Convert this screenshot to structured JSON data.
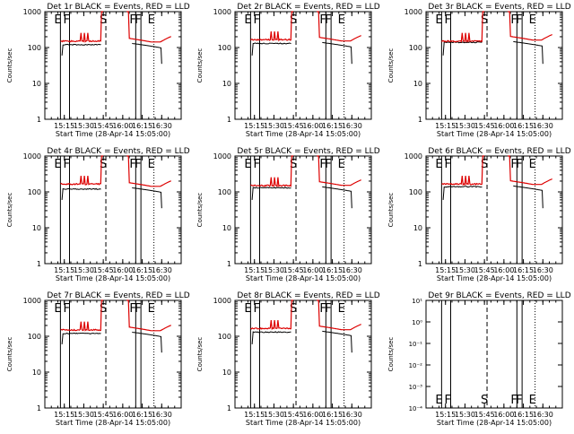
{
  "figure": {
    "ylabel": "Counts/sec",
    "xlabel": "Start Time (28-Apr-14 15:05:00)",
    "x_ticks": [
      "15:15",
      "15:30",
      "15:45",
      "16:00",
      "16:15",
      "16:30"
    ],
    "y_ticks_log": [
      "1",
      "10",
      "100",
      "1000"
    ],
    "y_ticks_empty": [
      "10⁻⁴",
      "10⁻³",
      "10⁻²",
      "10⁻¹",
      "10⁰",
      "10¹"
    ],
    "event_marks": [
      {
        "label": "E",
        "time": "15:12",
        "style": "solid"
      },
      {
        "label": "F",
        "time": "15:19",
        "style": "solid"
      },
      {
        "label": "S",
        "time": "15:47",
        "style": "dashed"
      },
      {
        "label": "F",
        "time": "16:10",
        "style": "solid"
      },
      {
        "label": "F",
        "time": "16:14",
        "style": "solid"
      },
      {
        "label": "E",
        "time": "16:24",
        "style": "dotted"
      }
    ],
    "colors": {
      "events": "#000000",
      "lld": "#dd0000",
      "axes": "#000000"
    }
  },
  "chart_data": [
    {
      "type": "line",
      "title": "Det 1r BLACK = Events, RED = LLD",
      "ylabel": "Counts/sec",
      "xlabel": "Start Time (28-Apr-14 15:05:00)",
      "yscale": "log",
      "ylim": [
        1,
        1000
      ],
      "series": [
        {
          "name": "Events",
          "color": "#000000",
          "segments": [
            {
              "x": [
                15.25,
                15.27,
                15.3,
                15.5,
                15.7
              ],
              "y": [
                60,
                130,
                130,
                130,
                130
              ]
            },
            {
              "x": [
                16.2,
                16.25,
                16.33,
                16.45,
                16.5
              ],
              "y": [
                140,
                135,
                125,
                110,
                30
              ]
            }
          ]
        },
        {
          "name": "LLD",
          "color": "#dd0000",
          "segments": [
            {
              "x": [
                15.25,
                15.3,
                15.45,
                15.55,
                15.65,
                15.7,
                15.75
              ],
              "y": [
                160,
                150,
                150,
                160,
                180,
                180,
                1000
              ]
            },
            {
              "x": [
                16.08,
                16.12,
                16.2,
                16.3,
                16.4,
                16.5,
                16.6
              ],
              "y": [
                1000,
                200,
                170,
                160,
                155,
                160,
                210
              ]
            }
          ]
        }
      ]
    },
    {
      "type": "line",
      "title": "Det 2r BLACK = Events, RED = LLD",
      "ylabel": "Counts/sec",
      "xlabel": "Start Time (28-Apr-14 15:05:00)",
      "yscale": "log",
      "ylim": [
        1,
        1000
      ],
      "series": [
        {
          "name": "Events",
          "color": "#000000"
        },
        {
          "name": "LLD",
          "color": "#dd0000"
        }
      ]
    },
    {
      "type": "line",
      "title": "Det 3r BLACK = Events, RED = LLD",
      "ylabel": "Counts/sec",
      "xlabel": "Start Time (28-Apr-14 15:05:00)",
      "yscale": "log",
      "ylim": [
        1,
        1000
      ],
      "series": [
        {
          "name": "Events",
          "color": "#000000"
        },
        {
          "name": "LLD",
          "color": "#dd0000"
        }
      ]
    },
    {
      "type": "line",
      "title": "Det 4r BLACK = Events, RED = LLD",
      "ylabel": "Counts/sec",
      "xlabel": "Start Time (28-Apr-14 15:05:00)",
      "yscale": "log",
      "ylim": [
        1,
        1000
      ],
      "series": [
        {
          "name": "Events",
          "color": "#000000"
        },
        {
          "name": "LLD",
          "color": "#dd0000"
        }
      ]
    },
    {
      "type": "line",
      "title": "Det 5r BLACK = Events, RED = LLD",
      "ylabel": "Counts/sec",
      "xlabel": "Start Time (28-Apr-14 15:05:00)",
      "yscale": "log",
      "ylim": [
        1,
        1000
      ],
      "series": [
        {
          "name": "Events",
          "color": "#000000"
        },
        {
          "name": "LLD",
          "color": "#dd0000"
        }
      ]
    },
    {
      "type": "line",
      "title": "Det 6r BLACK = Events, RED = LLD",
      "ylabel": "Counts/sec",
      "xlabel": "Start Time (28-Apr-14 15:05:00)",
      "yscale": "log",
      "ylim": [
        1,
        1000
      ],
      "series": [
        {
          "name": "Events",
          "color": "#000000"
        },
        {
          "name": "LLD",
          "color": "#dd0000"
        }
      ]
    },
    {
      "type": "line",
      "title": "Det 7r BLACK = Events, RED = LLD",
      "ylabel": "Counts/sec",
      "xlabel": "Start Time (28-Apr-14 15:05:00)",
      "yscale": "log",
      "ylim": [
        1,
        1000
      ],
      "series": [
        {
          "name": "Events",
          "color": "#000000"
        },
        {
          "name": "LLD",
          "color": "#dd0000"
        }
      ]
    },
    {
      "type": "line",
      "title": "Det 8r BLACK = Events, RED = LLD",
      "ylabel": "Counts/sec",
      "xlabel": "Start Time (28-Apr-14 15:05:00)",
      "yscale": "log",
      "ylim": [
        1,
        1000
      ],
      "series": [
        {
          "name": "Events",
          "color": "#000000"
        },
        {
          "name": "LLD",
          "color": "#dd0000"
        }
      ]
    },
    {
      "type": "line",
      "title": "Det 9r BLACK = Events, RED = LLD",
      "ylabel": "Counts/sec",
      "xlabel": "Start Time (28-Apr-14 15:05:00)",
      "yscale": "log",
      "ylim": [
        0.0001,
        10
      ],
      "empty": true,
      "series": []
    }
  ]
}
